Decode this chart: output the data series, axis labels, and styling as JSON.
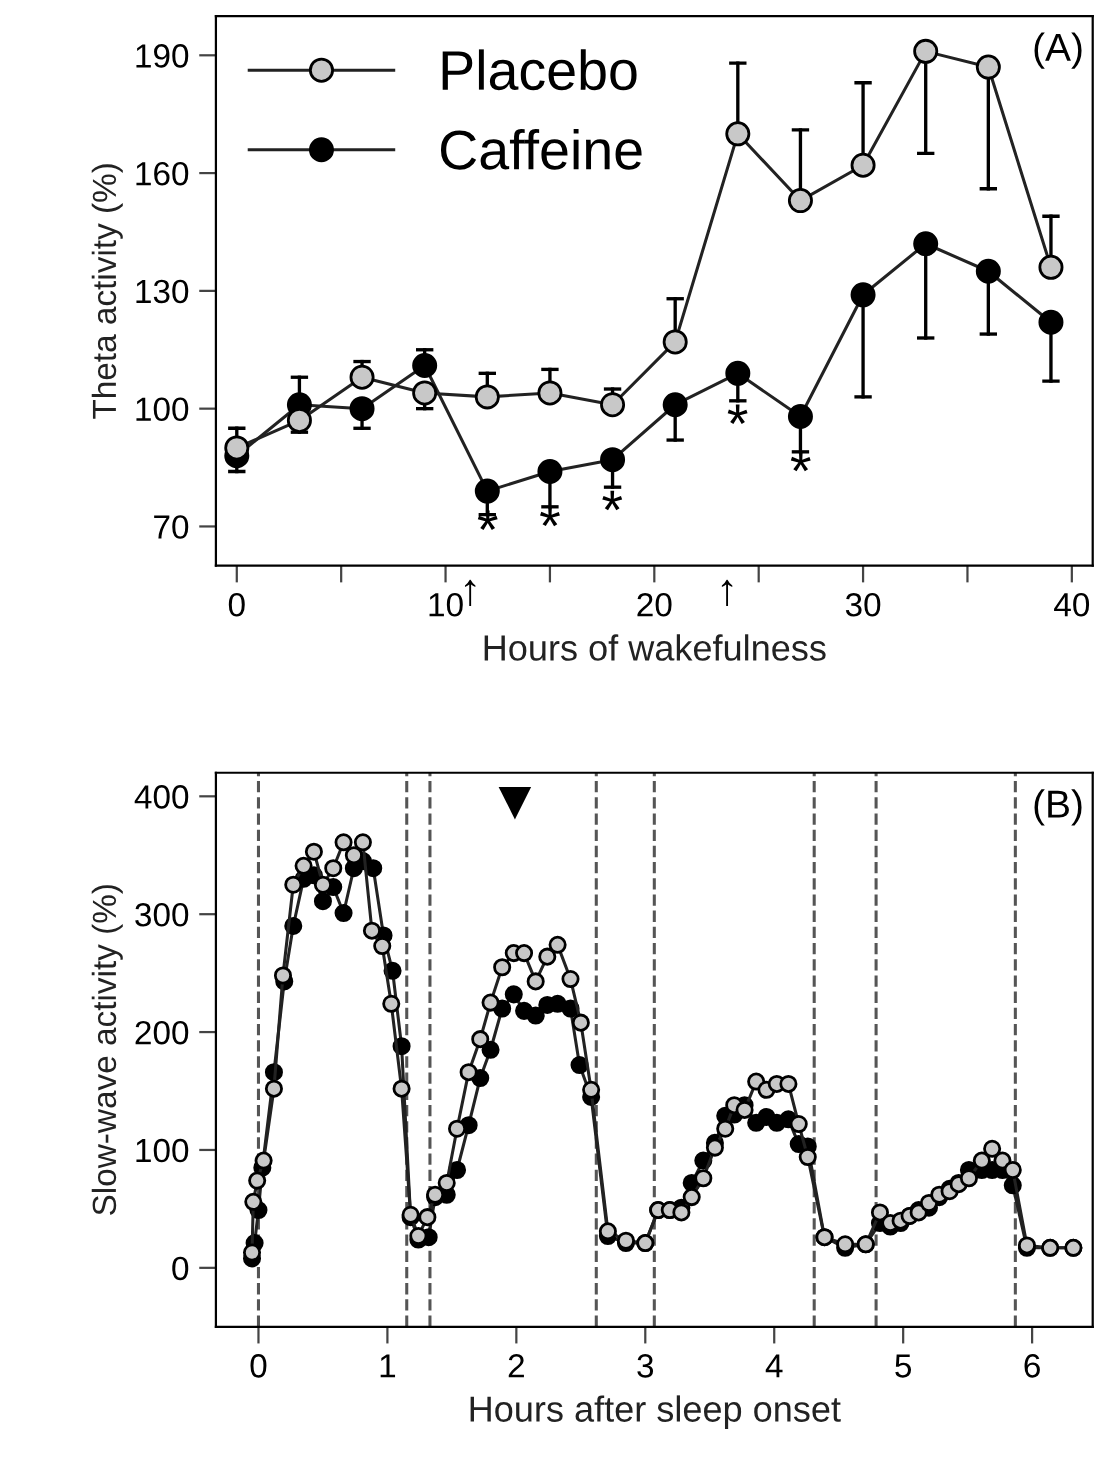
{
  "chart_data": [
    {
      "type": "line",
      "xlabel": "Hours of wakefulness",
      "ylabel": "Theta activity (%)",
      "marker": "circle",
      "line_style": "solid",
      "legend": "top left",
      "grid": false,
      "x": [
        0,
        3,
        6,
        9,
        12,
        15,
        18,
        21,
        24,
        27,
        30,
        33,
        36,
        39
      ],
      "series": [
        {
          "name": "Placebo",
          "color": "#c8c8c8",
          "values": [
            90,
            97,
            108,
            104,
            103,
            104,
            101,
            117,
            170,
            153,
            162,
            191,
            187,
            136
          ],
          "errors": [
            [
              90,
              95
            ],
            [
              94,
              97
            ],
            [
              108,
              112
            ],
            [
              100,
              104
            ],
            [
              103,
              109
            ],
            [
              104,
              110
            ],
            [
              101,
              105
            ],
            [
              117,
              128
            ],
            [
              170,
              188
            ],
            [
              153,
              171
            ],
            [
              162,
              183
            ],
            [
              165,
              191
            ],
            [
              156,
              187
            ],
            [
              136,
              149
            ]
          ]
        },
        {
          "name": "Caffeine",
          "color": "#000000",
          "values": [
            88,
            101,
            100,
            111,
            79,
            84,
            87,
            101,
            109,
            98,
            129,
            142,
            135,
            122
          ],
          "errors": [
            [
              84,
              88
            ],
            [
              101,
              108
            ],
            [
              95,
              100
            ],
            [
              111,
              115
            ],
            [
              73,
              79
            ],
            [
              75,
              84
            ],
            [
              80,
              87
            ],
            [
              92,
              101
            ],
            [
              102,
              109
            ],
            [
              89,
              98
            ],
            [
              103,
              129
            ],
            [
              118,
              142
            ],
            [
              119,
              135
            ],
            [
              107,
              122
            ]
          ]
        }
      ],
      "xlim": [
        -1,
        41
      ],
      "ylim": [
        60,
        200
      ],
      "xticks": [
        0,
        {
          "value": 5,
          "label": null
        },
        10,
        {
          "value": 15,
          "label": null
        },
        20,
        {
          "value": 25,
          "label": null
        },
        30,
        {
          "value": 35,
          "label": null
        },
        40
      ],
      "yticks": [
        70,
        100,
        130,
        160,
        190
      ],
      "annotations": [
        "(A)",
        "*",
        "*",
        "*",
        "*",
        "*",
        "↑",
        "↑"
      ]
    },
    {
      "type": "line",
      "xlabel": "Hours after sleep onset",
      "ylabel": "Slow-wave activity (%)",
      "marker": "circle",
      "line_style": "solid",
      "grid": false,
      "series": [
        {
          "color": "#000000",
          "x": [
            -0.05,
            -0.03,
            0.0,
            0.03,
            0.12,
            0.2,
            0.27,
            0.35,
            0.43,
            0.5,
            0.58,
            0.66,
            0.74,
            0.81,
            0.89,
            0.97,
            1.04,
            1.11,
            1.18,
            1.24,
            1.32,
            1.37,
            1.46,
            1.54,
            1.63,
            1.72,
            1.8,
            1.89,
            1.98,
            2.06,
            2.15,
            2.24,
            2.32,
            2.42,
            2.49,
            2.58,
            2.71,
            2.85,
            3.0,
            3.1,
            3.19,
            3.28,
            3.36,
            3.45,
            3.54,
            3.62,
            3.69,
            3.77,
            3.86,
            3.94,
            4.02,
            4.11,
            4.19,
            4.26,
            4.39,
            4.55,
            4.71,
            4.82,
            4.9,
            4.98,
            5.05,
            5.12,
            5.2,
            5.28,
            5.36,
            5.43,
            5.51,
            5.61,
            5.69,
            5.77,
            5.85,
            5.96,
            6.14,
            6.32
          ],
          "values": [
            8,
            21,
            49,
            85,
            166,
            243,
            290,
            330,
            333,
            311,
            323,
            301,
            339,
            345,
            339,
            282,
            252,
            188,
            43,
            24,
            26,
            60,
            62,
            83,
            121,
            161,
            185,
            220,
            232,
            218,
            214,
            223,
            224,
            220,
            172,
            145,
            27,
            21,
            21,
            49,
            49,
            51,
            72,
            91,
            106,
            129,
            130,
            138,
            123,
            128,
            123,
            126,
            105,
            103,
            26,
            17,
            20,
            38,
            35,
            38,
            44,
            49,
            51,
            60,
            67,
            72,
            83,
            83,
            83,
            83,
            70,
            17,
            17,
            17
          ]
        },
        {
          "color": "#c8c8c8",
          "x": [
            -0.05,
            -0.04,
            -0.01,
            0.04,
            0.12,
            0.19,
            0.27,
            0.35,
            0.43,
            0.5,
            0.58,
            0.66,
            0.74,
            0.81,
            0.88,
            0.96,
            1.03,
            1.11,
            1.18,
            1.24,
            1.31,
            1.37,
            1.46,
            1.54,
            1.63,
            1.72,
            1.8,
            1.89,
            1.98,
            2.06,
            2.15,
            2.24,
            2.32,
            2.42,
            2.5,
            2.58,
            2.71,
            2.85,
            3.0,
            3.1,
            3.19,
            3.28,
            3.36,
            3.45,
            3.54,
            3.62,
            3.69,
            3.77,
            3.86,
            3.94,
            4.02,
            4.11,
            4.19,
            4.26,
            4.39,
            4.55,
            4.71,
            4.82,
            4.9,
            4.98,
            5.05,
            5.12,
            5.2,
            5.28,
            5.36,
            5.43,
            5.51,
            5.61,
            5.69,
            5.77,
            5.85,
            5.96,
            6.14,
            6.32
          ],
          "values": [
            13,
            56,
            74,
            91,
            152,
            248,
            325,
            341,
            353,
            325,
            339,
            361,
            350,
            361,
            286,
            273,
            224,
            152,
            45,
            27,
            43,
            62,
            72,
            118,
            166,
            194,
            225,
            255,
            267,
            267,
            243,
            264,
            274,
            245,
            208,
            151,
            31,
            23,
            21,
            49,
            49,
            47,
            60,
            76,
            102,
            118,
            138,
            134,
            158,
            151,
            156,
            156,
            122,
            94,
            26,
            20,
            20,
            47,
            38,
            40,
            44,
            47,
            55,
            62,
            65,
            71,
            76,
            91,
            101,
            91,
            83,
            19,
            17,
            17
          ]
        }
      ],
      "xlim": [
        -0.33,
        6.47
      ],
      "ylim": [
        -50,
        420
      ],
      "xticks": [
        0,
        1,
        2,
        3,
        4,
        5,
        6
      ],
      "yticks": [
        0,
        100,
        200,
        300,
        400
      ],
      "ref_lines": [
        {
          "axis": "x",
          "value": 0,
          "line_style": "dashed"
        },
        {
          "axis": "x",
          "value": 1.15,
          "line_style": "dashed"
        },
        {
          "axis": "x",
          "value": 1.33,
          "line_style": "dashed"
        },
        {
          "axis": "x",
          "value": 2.62,
          "line_style": "dashed"
        },
        {
          "axis": "x",
          "value": 3.07,
          "line_style": "dashed"
        },
        {
          "axis": "x",
          "value": 4.31,
          "line_style": "dashed"
        },
        {
          "axis": "x",
          "value": 4.79,
          "line_style": "dashed"
        },
        {
          "axis": "x",
          "value": 5.87,
          "line_style": "dashed"
        }
      ],
      "annotations": [
        "(B)",
        "▼"
      ]
    }
  ]
}
